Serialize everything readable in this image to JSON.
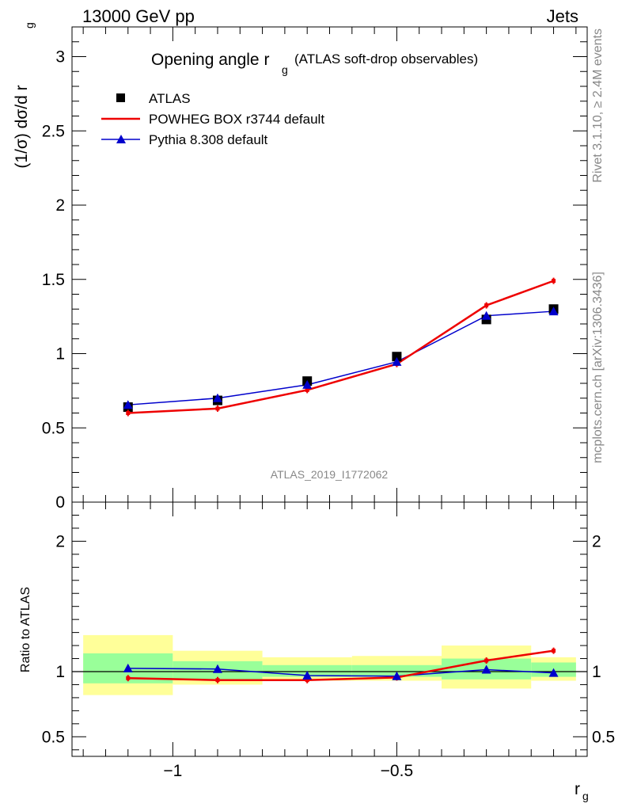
{
  "header": {
    "left": "13000 GeV pp",
    "right": "Jets"
  },
  "title": {
    "main": "Opening angle r",
    "sub": "g",
    "suffix": "(ATLAS soft-drop observables)"
  },
  "side_labels": {
    "rivet": "Rivet 3.1.10, ≥ 2.4M events",
    "mcplots": "mcplots.cern.ch [arXiv:1306.3436]"
  },
  "watermark": "ATLAS_2019_I1772062",
  "colors": {
    "data": "#000000",
    "powheg": "#ee0000",
    "pythia": "#0000cc",
    "band_inner": "#99ff99",
    "band_outer": "#ffff99"
  },
  "chart_data": [
    {
      "type": "line",
      "panel": "main",
      "ylabel": "(1/σ) dσ/d r",
      "ylabel_sub": "g",
      "ylim": [
        0,
        3.2
      ],
      "xlim": [
        -1.225,
        -0.075
      ],
      "yticks": [
        "0",
        "0.5",
        "1",
        "1.5",
        "2",
        "2.5",
        "3"
      ],
      "grid": false,
      "legend_position": "top-left",
      "bins": [
        [
          -1.2,
          -1.0
        ],
        [
          -1.0,
          -0.8
        ],
        [
          -0.8,
          -0.6
        ],
        [
          -0.6,
          -0.4
        ],
        [
          -0.4,
          -0.2
        ],
        [
          -0.2,
          -0.1
        ]
      ],
      "x": [
        -1.1,
        -0.9,
        -0.7,
        -0.5,
        -0.3,
        -0.15
      ],
      "series": [
        {
          "name": "ATLAS",
          "marker": "square",
          "values": [
            0.64,
            0.685,
            0.815,
            0.98,
            1.23,
            1.3
          ]
        },
        {
          "name": "POWHEG BOX r3744 default",
          "marker": "line",
          "values": [
            0.6,
            0.63,
            0.755,
            0.93,
            1.325,
            1.49
          ]
        },
        {
          "name": "Pythia 8.308 default",
          "marker": "triangle",
          "values": [
            0.655,
            0.7,
            0.79,
            0.945,
            1.255,
            1.285
          ]
        }
      ]
    },
    {
      "type": "line",
      "panel": "ratio",
      "ylabel": "Ratio to ATLAS",
      "xlabel": "r",
      "xlabel_sub": "g",
      "ylim": [
        0.35,
        2.3
      ],
      "yticks": [
        "0.5",
        "1",
        "2"
      ],
      "xticks": [
        "−1",
        "−0.5"
      ],
      "bins": [
        [
          -1.2,
          -1.0
        ],
        [
          -1.0,
          -0.8
        ],
        [
          -0.8,
          -0.6
        ],
        [
          -0.6,
          -0.4
        ],
        [
          -0.4,
          -0.2
        ],
        [
          -0.2,
          -0.1
        ]
      ],
      "x": [
        -1.1,
        -0.9,
        -0.7,
        -0.5,
        -0.3,
        -0.15
      ],
      "bands": {
        "inner": [
          [
            0.91,
            1.14
          ],
          [
            0.94,
            1.08
          ],
          [
            0.96,
            1.05
          ],
          [
            0.96,
            1.05
          ],
          [
            0.94,
            1.1
          ],
          [
            0.96,
            1.07
          ]
        ],
        "outer": [
          [
            0.82,
            1.28
          ],
          [
            0.9,
            1.16
          ],
          [
            0.93,
            1.11
          ],
          [
            0.93,
            1.12
          ],
          [
            0.87,
            1.2
          ],
          [
            0.93,
            1.11
          ]
        ]
      },
      "series": [
        {
          "name": "POWHEG BOX r3744 default",
          "values": [
            0.95,
            0.935,
            0.935,
            0.955,
            1.085,
            1.16
          ]
        },
        {
          "name": "Pythia 8.308 default",
          "values": [
            1.025,
            1.02,
            0.97,
            0.965,
            1.015,
            0.99
          ]
        }
      ]
    }
  ]
}
